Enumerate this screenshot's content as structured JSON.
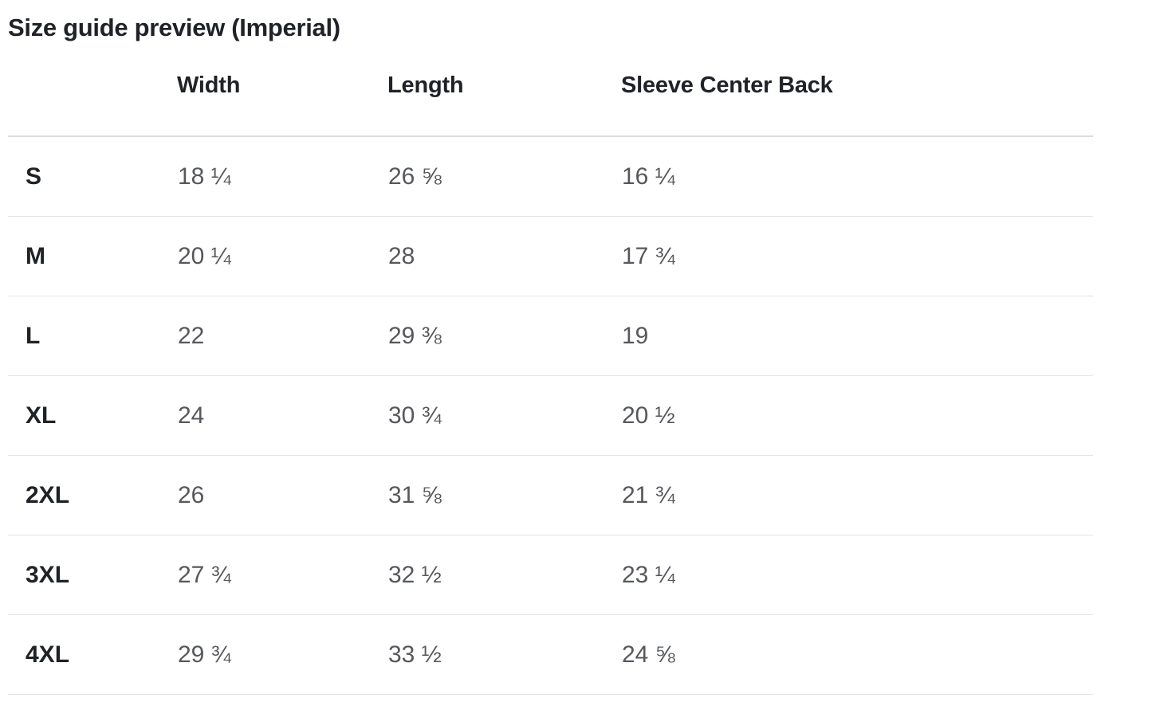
{
  "page": {
    "title": "Size guide preview (Imperial)"
  },
  "size_guide_table": {
    "columns": [
      "",
      "Width",
      "Length",
      "Sleeve Center Back"
    ],
    "rows": [
      {
        "size": "S",
        "width": "18 ¼",
        "length": "26 ⅝",
        "sleeve_center_back": "16 ¼"
      },
      {
        "size": "M",
        "width": "20 ¼",
        "length": "28",
        "sleeve_center_back": "17 ¾"
      },
      {
        "size": "L",
        "width": "22",
        "length": "29 ⅜",
        "sleeve_center_back": "19"
      },
      {
        "size": "XL",
        "width": "24",
        "length": "30 ¾",
        "sleeve_center_back": "20 ½"
      },
      {
        "size": "2XL",
        "width": "26",
        "length": "31 ⅝",
        "sleeve_center_back": "21 ¾"
      },
      {
        "size": "3XL",
        "width": "27 ¾",
        "length": "32 ½",
        "sleeve_center_back": "23 ¼"
      },
      {
        "size": "4XL",
        "width": "29 ¾",
        "length": "33 ½",
        "sleeve_center_back": "24 ⅝"
      }
    ]
  },
  "colors": {
    "background": "#ffffff",
    "title_text": "#1f2226",
    "header_text": "#1f2226",
    "row_label_text": "#1f2226",
    "cell_text": "#55585c",
    "header_divider": "#dcdcdc",
    "row_divider": "#e4e4e4"
  }
}
